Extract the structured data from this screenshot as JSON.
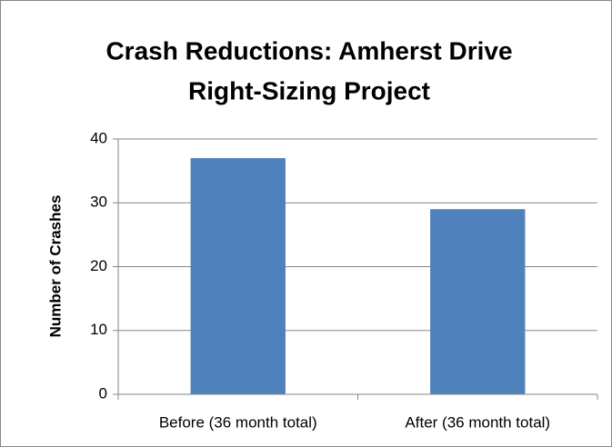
{
  "chart_data": {
    "type": "bar",
    "title": [
      "Crash Reductions: Amherst Drive",
      "Right-Sizing Project"
    ],
    "y_label": "Number of Crashes",
    "categories": [
      "Before (36 month total)",
      "After (36 month total)"
    ],
    "values": [
      37,
      29
    ],
    "color": "#4f81bd",
    "ylim": [
      0,
      40
    ],
    "yticks": [
      0,
      10,
      20,
      30,
      40
    ],
    "grid": true
  }
}
